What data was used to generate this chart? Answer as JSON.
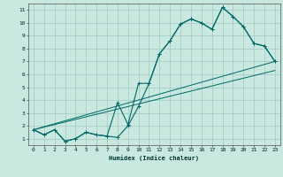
{
  "title": "",
  "xlabel": "Humidex (Indice chaleur)",
  "bg_color": "#c8e8e0",
  "grid_color": "#a0c8c0",
  "line_color": "#006868",
  "xlim": [
    -0.5,
    23.5
  ],
  "ylim": [
    0.5,
    11.5
  ],
  "xticks": [
    0,
    1,
    2,
    3,
    4,
    5,
    6,
    7,
    8,
    9,
    10,
    11,
    12,
    13,
    14,
    15,
    16,
    17,
    18,
    19,
    20,
    21,
    22,
    23
  ],
  "yticks": [
    1,
    2,
    3,
    4,
    5,
    6,
    7,
    8,
    9,
    10,
    11
  ],
  "curve1_x": [
    0,
    1,
    2,
    3,
    4,
    5,
    6,
    7,
    8,
    9,
    10,
    11,
    12,
    13,
    14,
    15,
    16,
    17,
    18,
    19,
    20,
    21,
    22,
    23
  ],
  "curve1_y": [
    1.7,
    1.3,
    1.7,
    0.8,
    1.0,
    1.5,
    1.3,
    1.2,
    1.1,
    2.0,
    3.5,
    5.3,
    7.6,
    8.6,
    9.9,
    10.3,
    10.0,
    9.5,
    11.2,
    10.5,
    9.7,
    8.4,
    8.2,
    7.0
  ],
  "curve2_x": [
    0,
    1,
    2,
    3,
    4,
    5,
    6,
    7,
    8,
    9,
    10,
    11,
    12,
    13,
    14,
    15,
    16,
    17,
    18,
    19,
    20,
    21,
    22,
    23
  ],
  "curve2_y": [
    1.7,
    1.3,
    1.7,
    0.8,
    1.0,
    1.5,
    1.3,
    1.2,
    3.8,
    2.1,
    5.3,
    5.3,
    7.6,
    8.6,
    9.9,
    10.3,
    10.0,
    9.5,
    11.2,
    10.5,
    9.7,
    8.4,
    8.2,
    7.0
  ],
  "line1_x": [
    0,
    23
  ],
  "line1_y": [
    1.7,
    7.0
  ],
  "line2_x": [
    0,
    23
  ],
  "line2_y": [
    1.7,
    6.3
  ]
}
